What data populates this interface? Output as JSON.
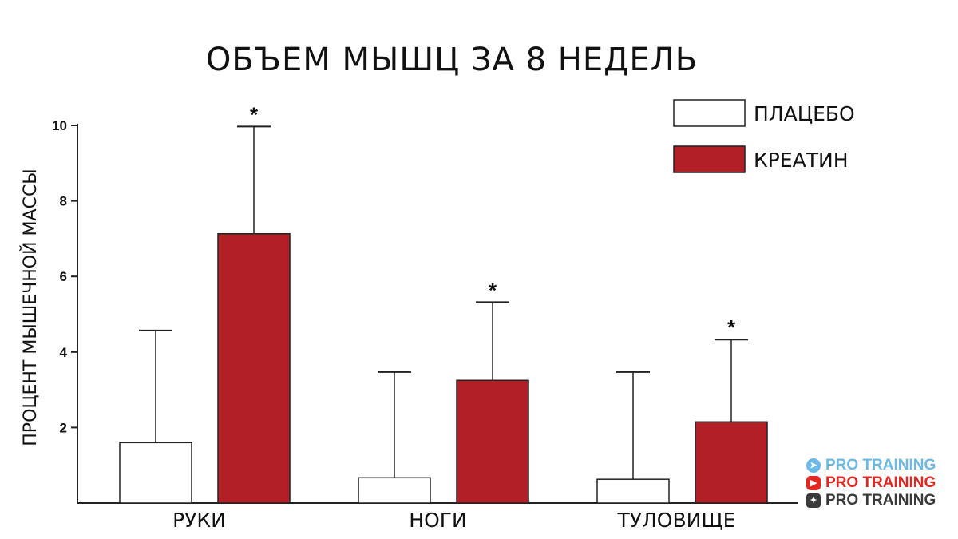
{
  "chart_data": {
    "type": "bar",
    "title": "ОБЪЕМ МЫШЦ ЗА 8 НЕДЕЛЬ",
    "ylabel": "ПРОЦЕНТ МЫШЕЧНОЙ МАССЫ",
    "xlabel": "",
    "ylim": [
      0,
      10
    ],
    "yticks": [
      "2",
      "4",
      "6",
      "8",
      "10"
    ],
    "categories": [
      "РУКИ",
      "НОГИ",
      "ТУЛОВИЩЕ"
    ],
    "series": [
      {
        "name": "ПЛАЦЕБО",
        "color": "#ffffff",
        "values": [
          1.6,
          0.67,
          0.63
        ],
        "error_upper": [
          4.57,
          3.47,
          3.47
        ]
      },
      {
        "name": "КРЕАТИН",
        "color": "#b31f26",
        "values": [
          7.13,
          3.25,
          2.15
        ],
        "error_upper": [
          9.97,
          5.32,
          4.33
        ],
        "significance": [
          "*",
          "*",
          "*"
        ]
      }
    ],
    "legend_position": "top-right",
    "grid": false
  },
  "watermark": {
    "lines": [
      {
        "text": "PRO TRAINING",
        "icon": "telegram-icon",
        "color": "#6cb8e6"
      },
      {
        "text": "PRO TRAINING",
        "icon": "youtube-icon",
        "color": "#e1271f"
      },
      {
        "text": "PRO TRAINING",
        "icon": "star-icon",
        "color": "#3a3a3a"
      }
    ]
  }
}
